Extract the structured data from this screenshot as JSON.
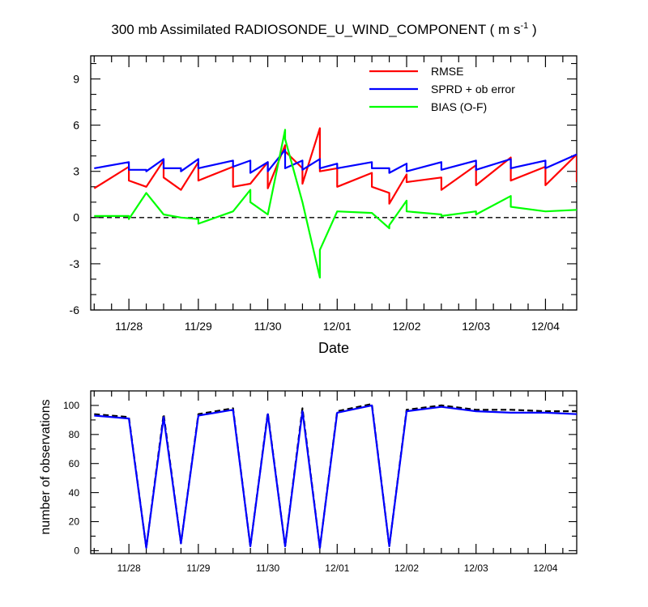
{
  "chart_data": [
    {
      "type": "line",
      "title": "300 mb Assimilated RADIOSONDE_U_WIND_COMPONENT ( m s",
      "title_unit_power": "-1",
      "title_end": " )",
      "xlabel": "Date",
      "ylabel": "",
      "xlim": [
        -0.55,
        6.45
      ],
      "ylim": [
        -6,
        10.5
      ],
      "yticks": [
        -6,
        -3,
        0,
        3,
        6,
        9
      ],
      "ytick_labels": [
        "-6",
        "-3",
        "0",
        "3",
        "6",
        "9"
      ],
      "xtick_labels": [
        {
          "x": 0,
          "label": "11/28"
        },
        {
          "x": 1,
          "label": "11/29"
        },
        {
          "x": 2,
          "label": "11/30"
        },
        {
          "x": 3,
          "label": "12/01"
        },
        {
          "x": 4,
          "label": "12/02"
        },
        {
          "x": 5,
          "label": "12/03"
        },
        {
          "x": 6,
          "label": "12/04"
        }
      ],
      "legend": [
        "RMSE",
        "SPRD + ob error",
        "BIAS (O-F)"
      ],
      "legend_position": "top-right",
      "zero_line": "dashed",
      "series": [
        {
          "name": "RMSE",
          "color": "#ff0000",
          "points": [
            [
              -0.5,
              1.9
            ],
            [
              0,
              3.3
            ],
            [
              0,
              2.4
            ],
            [
              0.25,
              2.0
            ],
            [
              0.5,
              3.7
            ],
            [
              0.5,
              2.6
            ],
            [
              0.75,
              1.8
            ],
            [
              1,
              3.6
            ],
            [
              1,
              2.4
            ],
            [
              1.5,
              3.3
            ],
            [
              1.5,
              2.0
            ],
            [
              1.75,
              2.2
            ],
            [
              2,
              3.6
            ],
            [
              2,
              1.9
            ],
            [
              2.25,
              4.7
            ],
            [
              2.25,
              4.3
            ],
            [
              2.5,
              3.2
            ],
            [
              2.5,
              2.2
            ],
            [
              2.75,
              5.8
            ],
            [
              2.75,
              3.0
            ],
            [
              3,
              3.2
            ],
            [
              3,
              2.0
            ],
            [
              3.5,
              2.9
            ],
            [
              3.5,
              2.0
            ],
            [
              3.75,
              1.6
            ],
            [
              3.75,
              0.9
            ],
            [
              4,
              2.8
            ],
            [
              4,
              2.3
            ],
            [
              4.5,
              2.6
            ],
            [
              4.5,
              1.8
            ],
            [
              5,
              3.4
            ],
            [
              5,
              2.1
            ],
            [
              5.5,
              3.9
            ],
            [
              5.5,
              2.4
            ],
            [
              6,
              3.3
            ],
            [
              6,
              2.1
            ],
            [
              6.45,
              4.1
            ],
            [
              6.45,
              2.3
            ]
          ]
        },
        {
          "name": "SPRD + ob error",
          "color": "#0000ff",
          "points": [
            [
              -0.5,
              3.2
            ],
            [
              0,
              3.6
            ],
            [
              0,
              3.1
            ],
            [
              0.25,
              3.1
            ],
            [
              0.25,
              3.0
            ],
            [
              0.5,
              3.8
            ],
            [
              0.5,
              3.2
            ],
            [
              0.75,
              3.2
            ],
            [
              0.75,
              3.0
            ],
            [
              1,
              3.8
            ],
            [
              1,
              3.2
            ],
            [
              1.5,
              3.7
            ],
            [
              1.5,
              3.3
            ],
            [
              1.75,
              3.7
            ],
            [
              1.75,
              2.9
            ],
            [
              2,
              3.6
            ],
            [
              2,
              3.0
            ],
            [
              2.25,
              4.4
            ],
            [
              2.25,
              3.2
            ],
            [
              2.5,
              3.7
            ],
            [
              2.5,
              3.1
            ],
            [
              2.75,
              3.8
            ],
            [
              2.75,
              3.2
            ],
            [
              3,
              3.5
            ],
            [
              3,
              3.2
            ],
            [
              3.5,
              3.6
            ],
            [
              3.5,
              3.2
            ],
            [
              3.75,
              3.2
            ],
            [
              3.75,
              2.9
            ],
            [
              4,
              3.5
            ],
            [
              4,
              3.0
            ],
            [
              4.5,
              3.6
            ],
            [
              4.5,
              3.1
            ],
            [
              5,
              3.7
            ],
            [
              5,
              3.1
            ],
            [
              5.5,
              3.8
            ],
            [
              5.5,
              3.2
            ],
            [
              6,
              3.7
            ],
            [
              6,
              3.2
            ],
            [
              6.45,
              4.1
            ]
          ]
        },
        {
          "name": "BIAS (O-F)",
          "color": "#00ff00",
          "points": [
            [
              -0.5,
              0.1
            ],
            [
              0,
              0.1
            ],
            [
              0,
              -0.1
            ],
            [
              0.25,
              1.6
            ],
            [
              0.5,
              0.2
            ],
            [
              0.75,
              0.0
            ],
            [
              1,
              -0.1
            ],
            [
              1,
              -0.4
            ],
            [
              1.5,
              0.4
            ],
            [
              1.75,
              1.8
            ],
            [
              1.75,
              1.0
            ],
            [
              2,
              0.2
            ],
            [
              2.25,
              5.7
            ],
            [
              2.25,
              5.1
            ],
            [
              2.5,
              1.0
            ],
            [
              2.75,
              -3.9
            ],
            [
              2.75,
              -2.1
            ],
            [
              3,
              0.4
            ],
            [
              3.5,
              0.3
            ],
            [
              3.75,
              -0.7
            ],
            [
              3.75,
              -0.5
            ],
            [
              4,
              1.1
            ],
            [
              4,
              0.4
            ],
            [
              4.5,
              0.2
            ],
            [
              4.5,
              0.1
            ],
            [
              5,
              0.4
            ],
            [
              5,
              0.2
            ],
            [
              5.5,
              1.4
            ],
            [
              5.5,
              0.7
            ],
            [
              6,
              0.4
            ],
            [
              6.45,
              0.5
            ]
          ]
        }
      ]
    },
    {
      "type": "line",
      "title": "",
      "xlabel": "",
      "ylabel": "number of observations",
      "xlim": [
        -0.55,
        6.45
      ],
      "ylim": [
        -2,
        110
      ],
      "yticks": [
        0,
        20,
        40,
        60,
        80,
        100
      ],
      "ytick_labels": [
        "0",
        "20",
        "40",
        "60",
        "80",
        "100"
      ],
      "xtick_labels": [
        {
          "x": 0,
          "label": "11/28"
        },
        {
          "x": 1,
          "label": "11/29"
        },
        {
          "x": 2,
          "label": "11/30"
        },
        {
          "x": 3,
          "label": "12/01"
        },
        {
          "x": 4,
          "label": "12/02"
        },
        {
          "x": 5,
          "label": "12/03"
        },
        {
          "x": 6,
          "label": "12/04"
        }
      ],
      "series": [
        {
          "name": "observations (dashed)",
          "color": "#000000",
          "dashed": true,
          "points": [
            [
              -0.5,
              94
            ],
            [
              0,
              92
            ],
            [
              0.25,
              2
            ],
            [
              0.5,
              94
            ],
            [
              0.75,
              5
            ],
            [
              1,
              94
            ],
            [
              1.5,
              98
            ],
            [
              1.75,
              3
            ],
            [
              2,
              95
            ],
            [
              2.25,
              3
            ],
            [
              2.5,
              98
            ],
            [
              2.75,
              2
            ],
            [
              3,
              96
            ],
            [
              3.5,
              101
            ],
            [
              3.75,
              3
            ],
            [
              4,
              97
            ],
            [
              4.5,
              100
            ],
            [
              5,
              97
            ],
            [
              5.5,
              97
            ],
            [
              6,
              96
            ],
            [
              6.45,
              96
            ]
          ]
        },
        {
          "name": "observations (solid)",
          "color": "#0000ff",
          "dashed": false,
          "points": [
            [
              -0.5,
              93
            ],
            [
              0,
              91
            ],
            [
              0.25,
              2
            ],
            [
              0.5,
              92
            ],
            [
              0.75,
              5
            ],
            [
              1,
              93
            ],
            [
              1.5,
              97
            ],
            [
              1.75,
              3
            ],
            [
              2,
              94
            ],
            [
              2.25,
              3
            ],
            [
              2.5,
              96
            ],
            [
              2.75,
              2
            ],
            [
              3,
              95
            ],
            [
              3.5,
              100
            ],
            [
              3.75,
              3
            ],
            [
              4,
              96
            ],
            [
              4.5,
              99
            ],
            [
              5,
              96
            ],
            [
              5.5,
              95
            ],
            [
              6,
              95
            ],
            [
              6.45,
              94
            ]
          ]
        }
      ]
    }
  ]
}
